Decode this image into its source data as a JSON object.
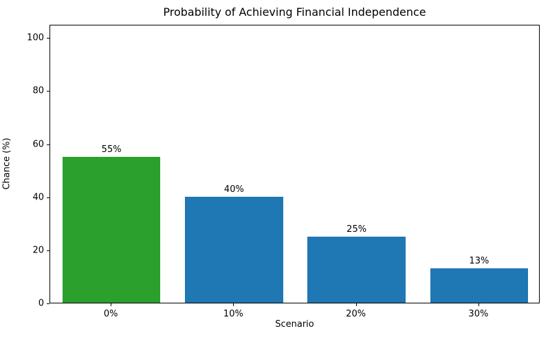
{
  "chart_data": {
    "type": "bar",
    "title": "Probability of Achieving Financial Independence",
    "xlabel": "Scenario",
    "ylabel": "Chance (%)",
    "categories": [
      "0%",
      "10%",
      "20%",
      "30%"
    ],
    "values": [
      55,
      40,
      25,
      13
    ],
    "bar_labels": [
      "55%",
      "40%",
      "25%",
      "13%"
    ],
    "bar_colors": [
      "#2ca02c",
      "#1f77b4",
      "#1f77b4",
      "#1f77b4"
    ],
    "yticks": [
      0,
      20,
      40,
      60,
      80,
      100
    ],
    "ylim": [
      0,
      105
    ],
    "bar_width_fraction": 0.8,
    "grid": false,
    "legend_position": "none",
    "axis_color": "#000000",
    "background_color": "#ffffff"
  }
}
